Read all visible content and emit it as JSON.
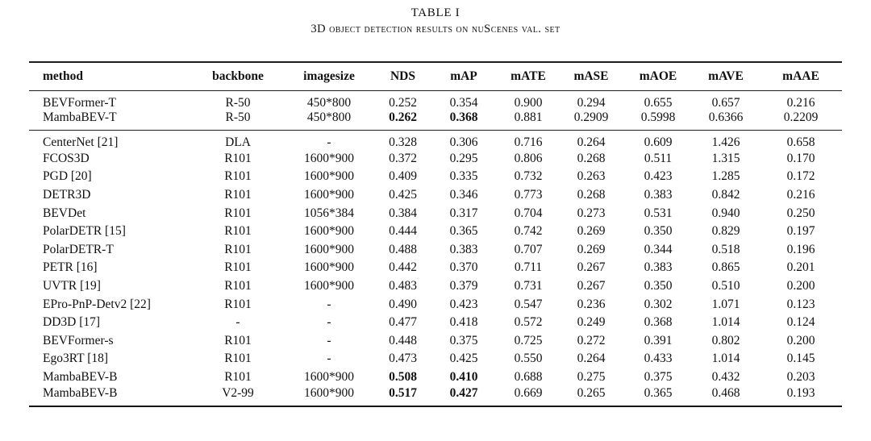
{
  "table": {
    "title": "TABLE I",
    "caption": "3D object detection results on nuScenes val. set",
    "columns": [
      "method",
      "backbone",
      "imagesize",
      "NDS",
      "mAP",
      "mATE",
      "mASE",
      "mAOE",
      "mAVE",
      "mAAE"
    ],
    "sections": [
      {
        "rows": [
          {
            "cells": [
              "BEVFormer-T",
              "R-50",
              "450*800",
              "0.252",
              "0.354",
              "0.900",
              "0.294",
              "0.655",
              "0.657",
              "0.216"
            ],
            "bold": []
          },
          {
            "cells": [
              "MambaBEV-T",
              "R-50",
              "450*800",
              "0.262",
              "0.368",
              "0.881",
              "0.2909",
              "0.5998",
              "0.6366",
              "0.2209"
            ],
            "bold": [
              3,
              4
            ]
          }
        ]
      },
      {
        "rows": [
          {
            "cells": [
              "CenterNet [21]",
              "DLA",
              "-",
              "0.328",
              "0.306",
              "0.716",
              "0.264",
              "0.609",
              "1.426",
              "0.658"
            ],
            "bold": []
          },
          {
            "cells": [
              "FCOS3D",
              "R101",
              "1600*900",
              "0.372",
              "0.295",
              "0.806",
              "0.268",
              "0.511",
              "1.315",
              "0.170"
            ],
            "bold": []
          },
          {
            "cells": [
              "PGD [20]",
              "R101",
              "1600*900",
              "0.409",
              "0.335",
              "0.732",
              "0.263",
              "0.423",
              "1.285",
              "0.172"
            ],
            "bold": []
          },
          {
            "cells": [
              "DETR3D",
              "R101",
              "1600*900",
              "0.425",
              "0.346",
              "0.773",
              "0.268",
              "0.383",
              "0.842",
              "0.216"
            ],
            "bold": []
          },
          {
            "cells": [
              "BEVDet",
              "R101",
              "1056*384",
              "0.384",
              "0.317",
              "0.704",
              "0.273",
              "0.531",
              "0.940",
              "0.250"
            ],
            "bold": []
          },
          {
            "cells": [
              "PolarDETR [15]",
              "R101",
              "1600*900",
              "0.444",
              "0.365",
              "0.742",
              "0.269",
              "0.350",
              "0.829",
              "0.197"
            ],
            "bold": []
          },
          {
            "cells": [
              "PolarDETR-T",
              "R101",
              "1600*900",
              "0.488",
              "0.383",
              "0.707",
              "0.269",
              "0.344",
              "0.518",
              "0.196"
            ],
            "bold": []
          },
          {
            "cells": [
              "PETR [16]",
              "R101",
              "1600*900",
              "0.442",
              "0.370",
              "0.711",
              "0.267",
              "0.383",
              "0.865",
              "0.201"
            ],
            "bold": []
          },
          {
            "cells": [
              "UVTR [19]",
              "R101",
              "1600*900",
              "0.483",
              "0.379",
              "0.731",
              "0.267",
              "0.350",
              "0.510",
              "0.200"
            ],
            "bold": []
          },
          {
            "cells": [
              "EPro-PnP-Detv2 [22]",
              "R101",
              "-",
              "0.490",
              "0.423",
              "0.547",
              "0.236",
              "0.302",
              "1.071",
              "0.123"
            ],
            "bold": []
          },
          {
            "cells": [
              "DD3D [17]",
              "-",
              "-",
              "0.477",
              "0.418",
              "0.572",
              "0.249",
              "0.368",
              "1.014",
              "0.124"
            ],
            "bold": []
          },
          {
            "cells": [
              "BEVFormer-s",
              "R101",
              "-",
              "0.448",
              "0.375",
              "0.725",
              "0.272",
              "0.391",
              "0.802",
              "0.200"
            ],
            "bold": []
          },
          {
            "cells": [
              "Ego3RT [18]",
              "R101",
              "-",
              "0.473",
              "0.425",
              "0.550",
              "0.264",
              "0.433",
              "1.014",
              "0.145"
            ],
            "bold": []
          },
          {
            "cells": [
              "MambaBEV-B",
              "R101",
              "1600*900",
              "0.508",
              "0.410",
              "0.688",
              "0.275",
              "0.375",
              "0.432",
              "0.203"
            ],
            "bold": [
              3,
              4
            ]
          },
          {
            "cells": [
              "MambaBEV-B",
              "V2-99",
              "1600*900",
              "0.517",
              "0.427",
              "0.669",
              "0.265",
              "0.365",
              "0.468",
              "0.193"
            ],
            "bold": [
              3,
              4
            ]
          }
        ]
      }
    ]
  }
}
